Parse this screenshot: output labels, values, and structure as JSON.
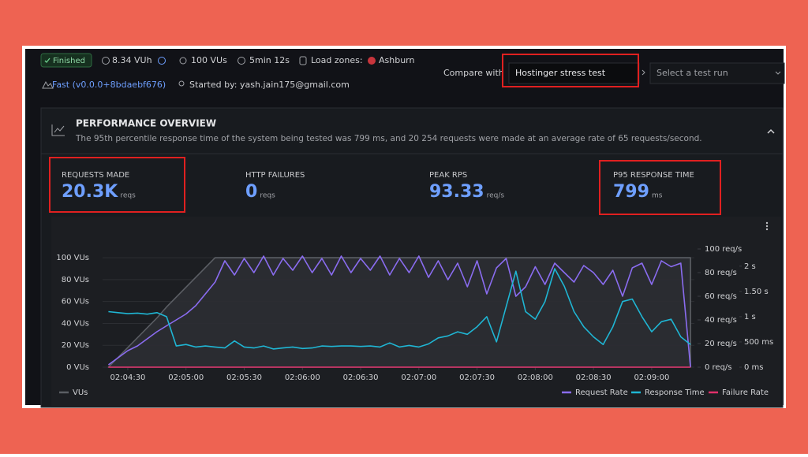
{
  "header": {
    "status": "Finished",
    "vuh": "8.34 VUh",
    "vus": "100 VUs",
    "duration": "5min 12s",
    "load_zones_label": "Load zones:",
    "load_zone": "Ashburn",
    "version": "Fast (v0.0.0+8bdaebf676)",
    "started_by": "Started by: yash.jain175@gmail.com",
    "compare_label": "Compare with",
    "compare_selected": "Hostinger stress test",
    "compare_placeholder": "Select a test run"
  },
  "overview": {
    "title": "PERFORMANCE OVERVIEW",
    "description": "The 95th percentile response time of the system being tested was 799 ms, and 20 254 requests were made at an average rate of 65 requests/second.",
    "metrics": [
      {
        "label": "REQUESTS MADE",
        "value": "20.3K",
        "unit": "reqs"
      },
      {
        "label": "HTTP FAILURES",
        "value": 0,
        "unit": "reqs"
      },
      {
        "label": "PEAK RPS",
        "value": 93.33,
        "unit": "req/s"
      },
      {
        "label": "P95 RESPONSE TIME",
        "value": 799,
        "unit": "ms"
      }
    ]
  },
  "chart_data": {
    "type": "line",
    "x": [
      7460,
      7465,
      7470,
      7475,
      7480,
      7485,
      7490,
      7495,
      7500,
      7505,
      7510,
      7515,
      7520,
      7525,
      7530,
      7535,
      7540,
      7545,
      7550,
      7555,
      7560,
      7565,
      7570,
      7575,
      7580,
      7585,
      7590,
      7595,
      7600,
      7605,
      7610,
      7615,
      7620,
      7625,
      7630,
      7635,
      7640,
      7645,
      7650,
      7655,
      7660,
      7665,
      7670,
      7675,
      7680,
      7685,
      7690,
      7695,
      7700,
      7705,
      7710,
      7715,
      7720,
      7725,
      7730,
      7735,
      7740,
      7745,
      7750,
      7755,
      7760
    ],
    "xlim": [
      7457,
      7762
    ],
    "xticks": [
      {
        "value": 7470,
        "label": "02:04:30"
      },
      {
        "value": 7500,
        "label": "02:05:00"
      },
      {
        "value": 7530,
        "label": "02:05:30"
      },
      {
        "value": 7560,
        "label": "02:06:00"
      },
      {
        "value": 7590,
        "label": "02:06:30"
      },
      {
        "value": 7620,
        "label": "02:07:00"
      },
      {
        "value": 7650,
        "label": "02:07:30"
      },
      {
        "value": 7680,
        "label": "02:08:00"
      },
      {
        "value": 7710,
        "label": "02:08:30"
      },
      {
        "value": 7740,
        "label": "02:09:00"
      }
    ],
    "ylim": [
      0,
      108
    ],
    "yticks": [
      {
        "value": 0,
        "label": "0 VUs"
      },
      {
        "value": 20,
        "label": "20 VUs"
      },
      {
        "value": 40,
        "label": "40 VUs"
      },
      {
        "value": 60,
        "label": "60 VUs"
      },
      {
        "value": 80,
        "label": "80 VUs"
      },
      {
        "value": 100,
        "label": "100 VUs"
      }
    ],
    "y2lim": [
      0,
      100
    ],
    "y2ticks": [
      {
        "value": 0,
        "label": "0 req/s"
      },
      {
        "value": 20,
        "label": "20 req/s"
      },
      {
        "value": 40,
        "label": "40 req/s"
      },
      {
        "value": 60,
        "label": "60 req/s"
      },
      {
        "value": 80,
        "label": "80 req/s"
      },
      {
        "value": 100,
        "label": "100 req/s"
      }
    ],
    "y3lim": [
      0,
      2340
    ],
    "y3ticks": [
      {
        "value": 0,
        "label": "0 ms"
      },
      {
        "value": 500,
        "label": "500 ms"
      },
      {
        "value": 1000,
        "label": "1 s"
      },
      {
        "value": 1500,
        "label": "1.50 s"
      },
      {
        "value": 2000,
        "label": "2 s"
      }
    ],
    "grid": true,
    "series": [
      {
        "name": "VUs",
        "color": "#5b5e64",
        "axis": "y",
        "area": true,
        "values": [
          0,
          9,
          18,
          27,
          36,
          45,
          55,
          64,
          73,
          82,
          91,
          100,
          100,
          100,
          100,
          100,
          100,
          100,
          100,
          100,
          100,
          100,
          100,
          100,
          100,
          100,
          100,
          100,
          100,
          100,
          100,
          100,
          100,
          100,
          100,
          100,
          100,
          100,
          100,
          100,
          100,
          100,
          100,
          100,
          100,
          100,
          100,
          100,
          100,
          100,
          100,
          100,
          100,
          100,
          100,
          100,
          100,
          100,
          100,
          100,
          100
        ]
      },
      {
        "name": "Request Rate",
        "color": "#8a6cf0",
        "axis": "y2",
        "values": [
          2,
          8,
          14,
          18,
          24,
          30,
          35,
          40,
          45,
          52,
          62,
          72,
          90,
          78,
          92,
          80,
          94,
          78,
          92,
          82,
          94,
          80,
          92,
          78,
          94,
          80,
          92,
          82,
          94,
          78,
          92,
          80,
          94,
          76,
          90,
          74,
          88,
          68,
          90,
          62,
          84,
          92,
          60,
          68,
          85,
          70,
          88,
          80,
          72,
          86,
          80,
          70,
          82,
          60,
          84,
          88,
          70,
          90,
          85,
          88,
          0
        ]
      },
      {
        "name": "Response Time",
        "color": "#1fb6d4",
        "axis": "y3",
        "values": [
          1100,
          1080,
          1060,
          1070,
          1050,
          1080,
          1000,
          420,
          450,
          400,
          420,
          400,
          380,
          520,
          400,
          380,
          420,
          360,
          380,
          400,
          370,
          380,
          420,
          410,
          420,
          420,
          410,
          420,
          400,
          480,
          400,
          430,
          400,
          460,
          580,
          620,
          700,
          650,
          800,
          1000,
          500,
          1200,
          1900,
          1100,
          950,
          1300,
          1950,
          1600,
          1100,
          800,
          600,
          450,
          800,
          1300,
          1350,
          1000,
          700,
          900,
          950,
          600,
          450
        ]
      },
      {
        "name": "Failure Rate",
        "color": "#e0306a",
        "axis": "y2",
        "values": [
          0,
          0,
          0,
          0,
          0,
          0,
          0,
          0,
          0,
          0,
          0,
          0,
          0,
          0,
          0,
          0,
          0,
          0,
          0,
          0,
          0,
          0,
          0,
          0,
          0,
          0,
          0,
          0,
          0,
          0,
          0,
          0,
          0,
          0,
          0,
          0,
          0,
          0,
          0,
          0,
          0,
          0,
          0,
          0,
          0,
          0,
          0,
          0,
          0,
          0,
          0,
          0,
          0,
          0,
          0,
          0,
          0,
          0,
          0,
          0,
          0
        ]
      }
    ]
  }
}
